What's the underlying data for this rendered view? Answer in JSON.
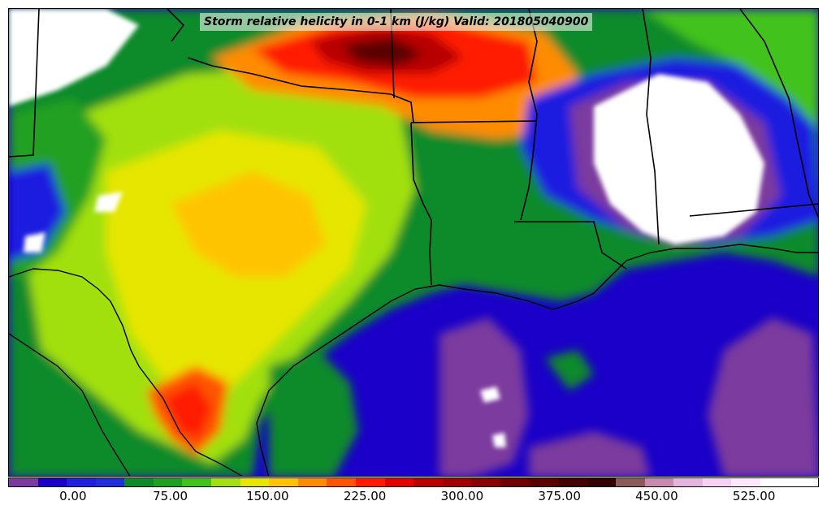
{
  "title": "Storm relative helicity in 0-1 km (J/kg) Valid: 201805040900",
  "colorbar": {
    "colors": [
      "#7b3a9e",
      "#1a00c8",
      "#1f1fe0",
      "#2030d8",
      "#0e8a2a",
      "#20a020",
      "#42c21a",
      "#a2e010",
      "#e6e600",
      "#ffc400",
      "#ff8c00",
      "#ff5500",
      "#ff1a00",
      "#e00000",
      "#b80000",
      "#a00000",
      "#880000",
      "#700000",
      "#5a0000",
      "#420000",
      "#340000",
      "#8b5a5a",
      "#c98ab0",
      "#e6b4e0",
      "#f5d2f5",
      "#fbe8fb",
      "#ffffff",
      "#ffffff"
    ],
    "tick_labels": [
      "0.00",
      "75.00",
      "150.00",
      "225.00",
      "300.00",
      "375.00",
      "450.00",
      "525.00"
    ],
    "tick_values": [
      0,
      75,
      150,
      225,
      300,
      375,
      450,
      525
    ],
    "vmin": -50,
    "vmax": 575
  }
}
